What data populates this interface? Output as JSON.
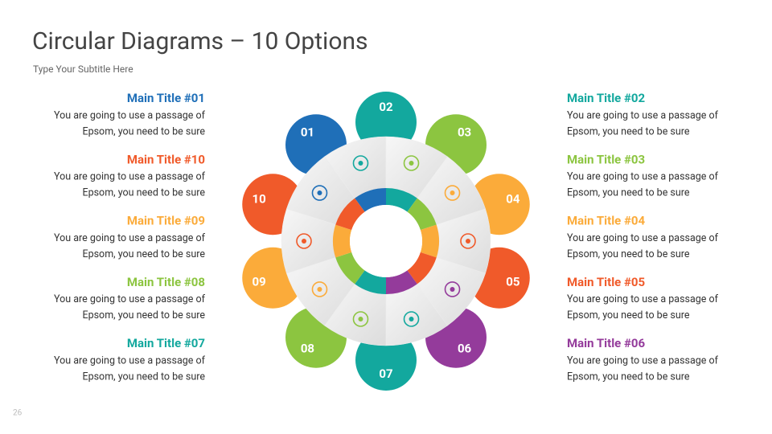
{
  "header": {
    "title": "Circular Diagrams – 10 Options",
    "subtitle": "Type Your Subtitle Here"
  },
  "page_number": "26",
  "items": [
    {
      "number": "01",
      "title": "Main Title #01",
      "lines": [
        "You are going to use a passage of",
        "Epsom, you need to be sure"
      ],
      "color": "#1f6fb8"
    },
    {
      "number": "02",
      "title": "Main Title #02",
      "lines": [
        "You are going to use a passage of",
        "Epsom, you need to be sure"
      ],
      "color": "#13a89e"
    },
    {
      "number": "03",
      "title": "Main Title #03",
      "lines": [
        "You are going to use a passage of",
        "Epsom, you need to be sure"
      ],
      "color": "#8cc540"
    },
    {
      "number": "04",
      "title": "Main Title #04",
      "lines": [
        "You are going to use a passage of",
        "Epsom, you need to be sure"
      ],
      "color": "#fbab3a"
    },
    {
      "number": "05",
      "title": "Main Title #05",
      "lines": [
        "You are going to use a passage of",
        "Epsom, you need to be sure"
      ],
      "color": "#f05a2a"
    },
    {
      "number": "06",
      "title": "Main Title #06",
      "lines": [
        "You are going to use a passage of",
        "Epsom, you need to be sure"
      ],
      "color": "#943b9b"
    },
    {
      "number": "07",
      "title": "Main Title #07",
      "lines": [
        "You are going to use a passage of",
        "Epsom, you need to be sure"
      ],
      "color": "#13a89e"
    },
    {
      "number": "08",
      "title": "Main Title #08",
      "lines": [
        "You are going to use a passage of",
        "Epsom, you need to be sure"
      ],
      "color": "#8cc540"
    },
    {
      "number": "09",
      "title": "Main Title #09",
      "lines": [
        "You are going to use a passage of",
        "Epsom, you need to be sure"
      ],
      "color": "#fbab3a"
    },
    {
      "number": "10",
      "title": "Main Title #10",
      "lines": [
        "You are going to use a passage of",
        "Epsom, you need to be sure"
      ],
      "color": "#f05a2a"
    }
  ]
}
